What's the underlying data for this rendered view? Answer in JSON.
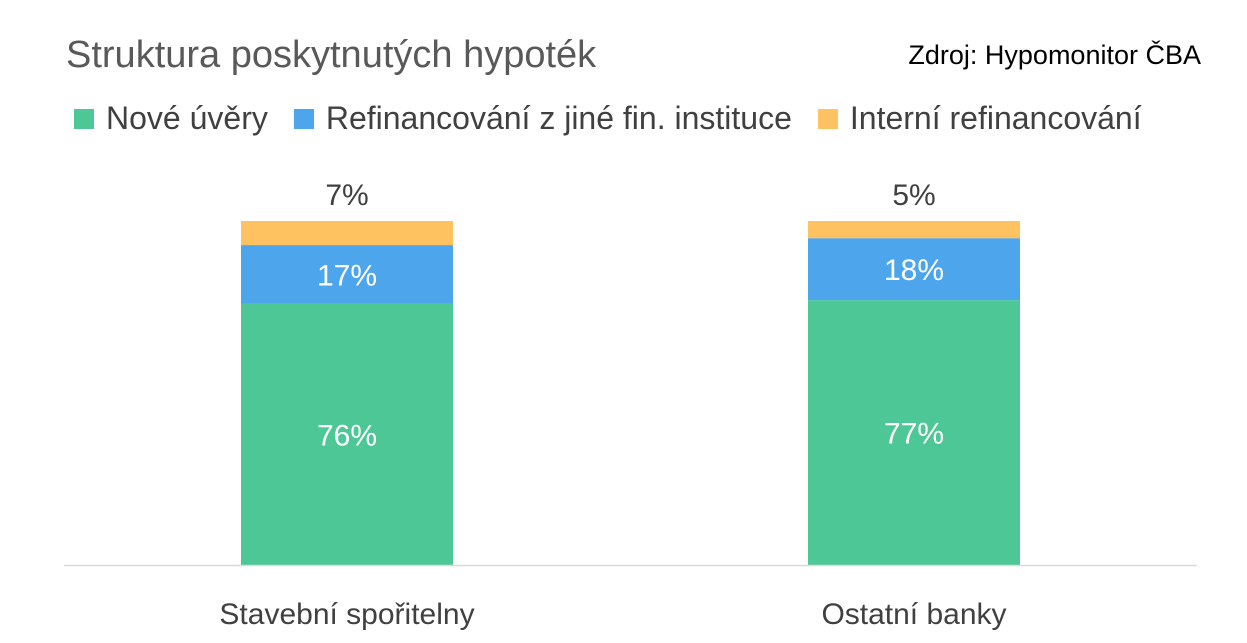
{
  "header": {
    "title": "Struktura poskytnutých hypoték",
    "source": "Zdroj: Hypomonitor ČBA"
  },
  "colors": {
    "Nové úvěry": "#4cc795",
    "Refinancování z jiné fin. instituce": "#4da6ec",
    "Interní refinancování": "#ffc261",
    "axis": "#d9d9d9",
    "label_inside": "#ffffff",
    "label_outside": "#404040"
  },
  "chart_data": {
    "type": "bar",
    "stacked": true,
    "title": "Struktura poskytnutých hypoték",
    "categories": [
      "Stavební spořitelny",
      "Ostatní banky"
    ],
    "series": [
      {
        "name": "Nové úvěry",
        "values": [
          76,
          77
        ],
        "labels": [
          "76%",
          "77%"
        ]
      },
      {
        "name": "Refinancování z jiné fin. instituce",
        "values": [
          17,
          18
        ],
        "labels": [
          "17%",
          "18%"
        ]
      },
      {
        "name": "Interní refinancování",
        "values": [
          7,
          5
        ],
        "labels": [
          "7%",
          "5%"
        ]
      }
    ],
    "unit": "%",
    "ylim": [
      0,
      100
    ],
    "grid": false,
    "legend": "top"
  }
}
